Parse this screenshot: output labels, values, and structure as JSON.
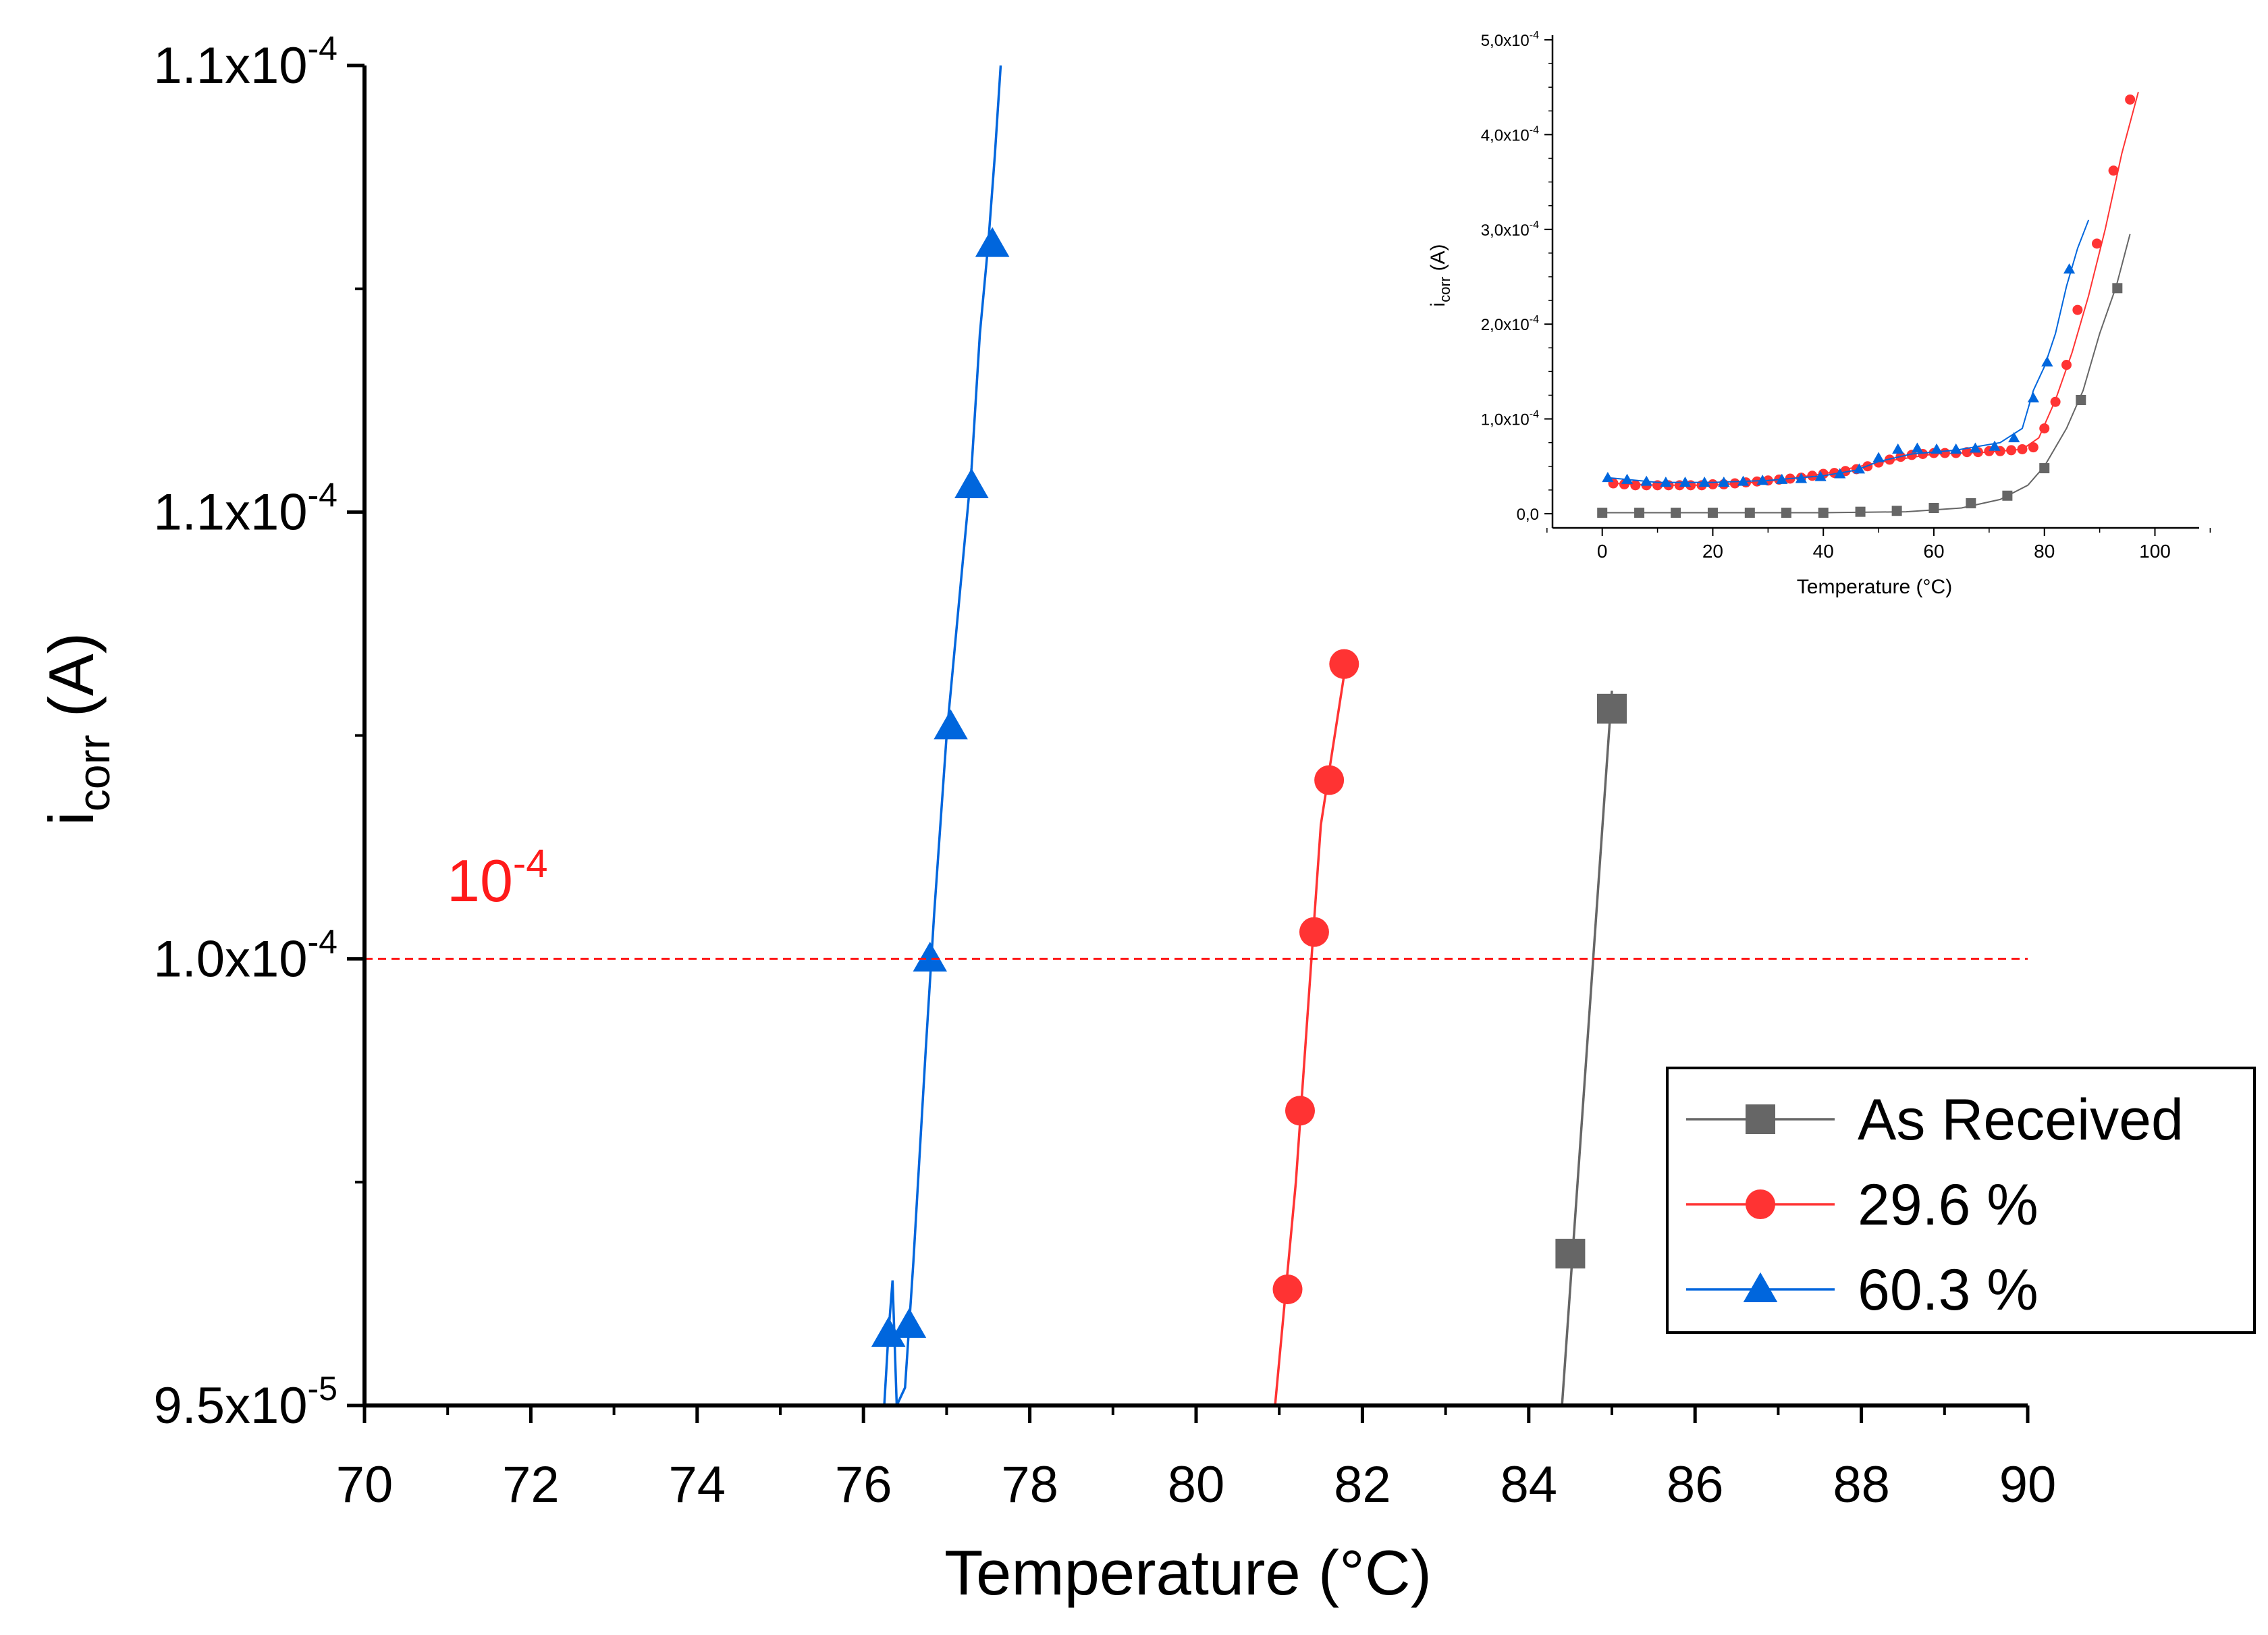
{
  "chart_data": [
    {
      "id": "main",
      "type": "line",
      "title": "",
      "xlabel": "Temperature (°C)",
      "ylabel_main": "i",
      "ylabel_sub": "corr",
      "ylabel_unit": " (A)",
      "xlim": [
        70,
        90
      ],
      "ylim": [
        9.5e-05,
        0.00011
      ],
      "x_ticks": [
        70,
        72,
        74,
        76,
        78,
        80,
        82,
        84,
        86,
        88,
        90
      ],
      "x_tick_labels": [
        "70",
        "72",
        "74",
        "76",
        "78",
        "80",
        "82",
        "84",
        "86",
        "88",
        "90"
      ],
      "y_ticks": [
        {
          "value": 9.5e-05,
          "mantissa": "9.5x10",
          "exp": "-5"
        },
        {
          "value": 0.0001,
          "mantissa": "1.0x10",
          "exp": "-4"
        },
        {
          "value": 0.000105,
          "mantissa": "1.1x10",
          "exp": "-4"
        },
        {
          "value": 0.00011,
          "mantissa": "1.1x10",
          "exp": "-4"
        }
      ],
      "reference_line": {
        "value": 0.0001,
        "label_base": "10",
        "label_exp": "-4",
        "color": "#ff1a1a"
      },
      "legend": {
        "position": "bottom-right",
        "entries": [
          {
            "label": "As Received",
            "marker": "square",
            "color": "#666666"
          },
          {
            "label": "29.6 %",
            "marker": "circle",
            "color": "#ff3333"
          },
          {
            "label": "60.3 %",
            "marker": "triangle",
            "color": "#0066dd"
          }
        ]
      },
      "series": [
        {
          "name": "As Received",
          "color": "#666666",
          "marker": "square",
          "line": [
            [
              84.4,
              9.5e-05
            ],
            [
              85.0,
              0.000103
            ]
          ],
          "markers": [
            [
              84.5,
              9.67e-05
            ],
            [
              85.0,
              0.0001028
            ]
          ]
        },
        {
          "name": "29.6 %",
          "color": "#ff3333",
          "marker": "circle",
          "line": [
            [
              80.95,
              9.5e-05
            ],
            [
              81.2,
              9.75e-05
            ],
            [
              81.5,
              0.0001015
            ],
            [
              81.8,
              0.0001033
            ]
          ],
          "markers": [
            [
              81.1,
              9.63e-05
            ],
            [
              81.25,
              9.83e-05
            ],
            [
              81.42,
              0.0001003
            ],
            [
              81.6,
              0.000102
            ],
            [
              81.78,
              0.0001033
            ]
          ]
        },
        {
          "name": "60.3 %",
          "color": "#0066dd",
          "marker": "triangle",
          "line": [
            [
              76.25,
              9.5e-05
            ],
            [
              76.3,
              9.58e-05
            ],
            [
              76.35,
              9.64e-05
            ],
            [
              76.4,
              9.5e-05
            ],
            [
              76.5,
              9.52e-05
            ],
            [
              76.6,
              9.66e-05
            ],
            [
              76.75,
              9.9e-05
            ],
            [
              76.85,
              0.0001005
            ],
            [
              77.0,
              0.0001025
            ],
            [
              77.1,
              0.0001035
            ],
            [
              77.2,
              0.0001045
            ],
            [
              77.3,
              0.0001055
            ],
            [
              77.4,
              0.000107
            ],
            [
              77.5,
              0.000108
            ],
            [
              77.58,
              0.000109
            ],
            [
              77.65,
              0.00011
            ]
          ],
          "markers": [
            [
              76.3,
              9.58e-05
            ],
            [
              76.55,
              9.59e-05
            ],
            [
              76.8,
              0.0001
            ],
            [
              77.05,
              0.0001026
            ],
            [
              77.3,
              0.0001053
            ],
            [
              77.55,
              0.000108
            ]
          ]
        }
      ]
    },
    {
      "id": "inset",
      "type": "line",
      "title": "",
      "xlabel": "Temperature (°C)",
      "ylabel_main": "i",
      "ylabel_sub": "corr",
      "ylabel_unit": " (A)",
      "xlim": [
        -9,
        108
      ],
      "ylim": [
        -1.5e-05,
        0.000505
      ],
      "x_ticks": [
        0,
        20,
        40,
        60,
        80,
        100
      ],
      "x_tick_labels": [
        "0",
        "20",
        "40",
        "60",
        "80",
        "100"
      ],
      "y_ticks": [
        {
          "value": 0.0,
          "mantissa": "0,0",
          "exp": ""
        },
        {
          "value": 0.0001,
          "mantissa": "1,0x10",
          "exp": "-4"
        },
        {
          "value": 0.0002,
          "mantissa": "2,0x10",
          "exp": "-4"
        },
        {
          "value": 0.0003,
          "mantissa": "3,0x10",
          "exp": "-4"
        },
        {
          "value": 0.0004,
          "mantissa": "4,0x10",
          "exp": "-4"
        },
        {
          "value": 0.0005,
          "mantissa": "5,0x10",
          "exp": "-4"
        }
      ],
      "series": [
        {
          "name": "As Received",
          "color": "#666666",
          "marker": "square",
          "line": [
            [
              0,
              1e-06
            ],
            [
              20,
              1e-06
            ],
            [
              40,
              1e-06
            ],
            [
              55,
              2e-06
            ],
            [
              65,
              6e-06
            ],
            [
              72,
              1.5e-05
            ],
            [
              77,
              3e-05
            ],
            [
              80,
              5e-05
            ],
            [
              84,
              9e-05
            ],
            [
              87,
              0.00013
            ],
            [
              90,
              0.00019
            ],
            [
              93,
              0.00024
            ],
            [
              95.5,
              0.000295
            ]
          ],
          "markers": [
            [
              0,
              1e-06
            ],
            [
              6.7,
              1e-06
            ],
            [
              13.3,
              1e-06
            ],
            [
              20,
              1e-06
            ],
            [
              26.7,
              1e-06
            ],
            [
              33.3,
              1e-06
            ],
            [
              40,
              1e-06
            ],
            [
              46.7,
              2e-06
            ],
            [
              53.3,
              3e-06
            ],
            [
              60,
              6e-06
            ],
            [
              66.7,
              1.1e-05
            ],
            [
              73.3,
              1.9e-05
            ],
            [
              80,
              4.8e-05
            ],
            [
              86.6,
              0.00012
            ],
            [
              93.2,
              0.000238
            ]
          ]
        },
        {
          "name": "29.6 %",
          "color": "#ff3333",
          "marker": "circle",
          "line": [
            [
              2,
              3.2e-05
            ],
            [
              10,
              3e-05
            ],
            [
              20,
              3e-05
            ],
            [
              30,
              3.4e-05
            ],
            [
              40,
              4.2e-05
            ],
            [
              50,
              5.4e-05
            ],
            [
              60,
              6.3e-05
            ],
            [
              70,
              6.5e-05
            ],
            [
              76,
              6.8e-05
            ],
            [
              79,
              8e-05
            ],
            [
              82,
              0.00012
            ],
            [
              85,
              0.00017
            ],
            [
              88,
              0.00023
            ],
            [
              91,
              0.0003
            ],
            [
              94,
              0.00038
            ],
            [
              97,
              0.000445
            ]
          ],
          "markers": [
            [
              2,
              3.2e-05
            ],
            [
              4,
              3.1e-05
            ],
            [
              6,
              3e-05
            ],
            [
              8,
              3e-05
            ],
            [
              10,
              3e-05
            ],
            [
              12,
              3e-05
            ],
            [
              14,
              3e-05
            ],
            [
              16,
              3e-05
            ],
            [
              18,
              3e-05
            ],
            [
              20,
              3.1e-05
            ],
            [
              22,
              3.1e-05
            ],
            [
              24,
              3.2e-05
            ],
            [
              26,
              3.3e-05
            ],
            [
              28,
              3.4e-05
            ],
            [
              30,
              3.5e-05
            ],
            [
              32,
              3.6e-05
            ],
            [
              34,
              3.7e-05
            ],
            [
              36,
              3.8e-05
            ],
            [
              38,
              4e-05
            ],
            [
              40,
              4.2e-05
            ],
            [
              42,
              4.3e-05
            ],
            [
              44,
              4.5e-05
            ],
            [
              46,
              4.7e-05
            ],
            [
              48,
              5e-05
            ],
            [
              50,
              5.4e-05
            ],
            [
              52,
              5.7e-05
            ],
            [
              54,
              6e-05
            ],
            [
              56,
              6.2e-05
            ],
            [
              58,
              6.3e-05
            ],
            [
              60,
              6.4e-05
            ],
            [
              62,
              6.4e-05
            ],
            [
              64,
              6.4e-05
            ],
            [
              66,
              6.5e-05
            ],
            [
              68,
              6.5e-05
            ],
            [
              70,
              6.6e-05
            ],
            [
              72,
              6.6e-05
            ],
            [
              74,
              6.7e-05
            ],
            [
              76,
              6.8e-05
            ],
            [
              78,
              7e-05
            ],
            [
              80,
              9e-05
            ],
            [
              82,
              0.000118
            ],
            [
              84,
              0.000157
            ],
            [
              86,
              0.000215
            ],
            [
              89.5,
              0.000285
            ],
            [
              92.5,
              0.000362
            ],
            [
              95.5,
              0.000437
            ]
          ]
        },
        {
          "name": "60.3 %",
          "color": "#0066dd",
          "marker": "triangle",
          "line": [
            [
              1,
              3.8e-05
            ],
            [
              10,
              3.3e-05
            ],
            [
              20,
              3.3e-05
            ],
            [
              30,
              3.5e-05
            ],
            [
              40,
              4e-05
            ],
            [
              46,
              4.6e-05
            ],
            [
              50,
              5.5e-05
            ],
            [
              56,
              6.3e-05
            ],
            [
              64,
              6.7e-05
            ],
            [
              72,
              7.5e-05
            ],
            [
              76,
              9e-05
            ],
            [
              78,
              0.00013
            ],
            [
              80,
              0.000155
            ],
            [
              82,
              0.00019
            ],
            [
              84,
              0.00024
            ],
            [
              86,
              0.00028
            ],
            [
              88,
              0.00031
            ]
          ],
          "markers": [
            [
              1,
              3.8e-05
            ],
            [
              4.5,
              3.6e-05
            ],
            [
              8,
              3.4e-05
            ],
            [
              11.5,
              3.3e-05
            ],
            [
              15,
              3.3e-05
            ],
            [
              18.5,
              3.3e-05
            ],
            [
              22,
              3.3e-05
            ],
            [
              25.5,
              3.4e-05
            ],
            [
              29,
              3.5e-05
            ],
            [
              32.5,
              3.6e-05
            ],
            [
              36,
              3.7e-05
            ],
            [
              39.5,
              3.9e-05
            ],
            [
              43,
              4.2e-05
            ],
            [
              46.5,
              4.7e-05
            ],
            [
              50,
              5.9e-05
            ],
            [
              53.5,
              6.8e-05
            ],
            [
              57,
              6.9e-05
            ],
            [
              60.5,
              6.8e-05
            ],
            [
              64,
              6.8e-05
            ],
            [
              67.5,
              6.9e-05
            ],
            [
              71,
              7.1e-05
            ],
            [
              74.5,
              8e-05
            ],
            [
              78,
              0.000122
            ],
            [
              80.5,
              0.00016
            ],
            [
              84.5,
              0.000258
            ]
          ]
        }
      ]
    }
  ]
}
